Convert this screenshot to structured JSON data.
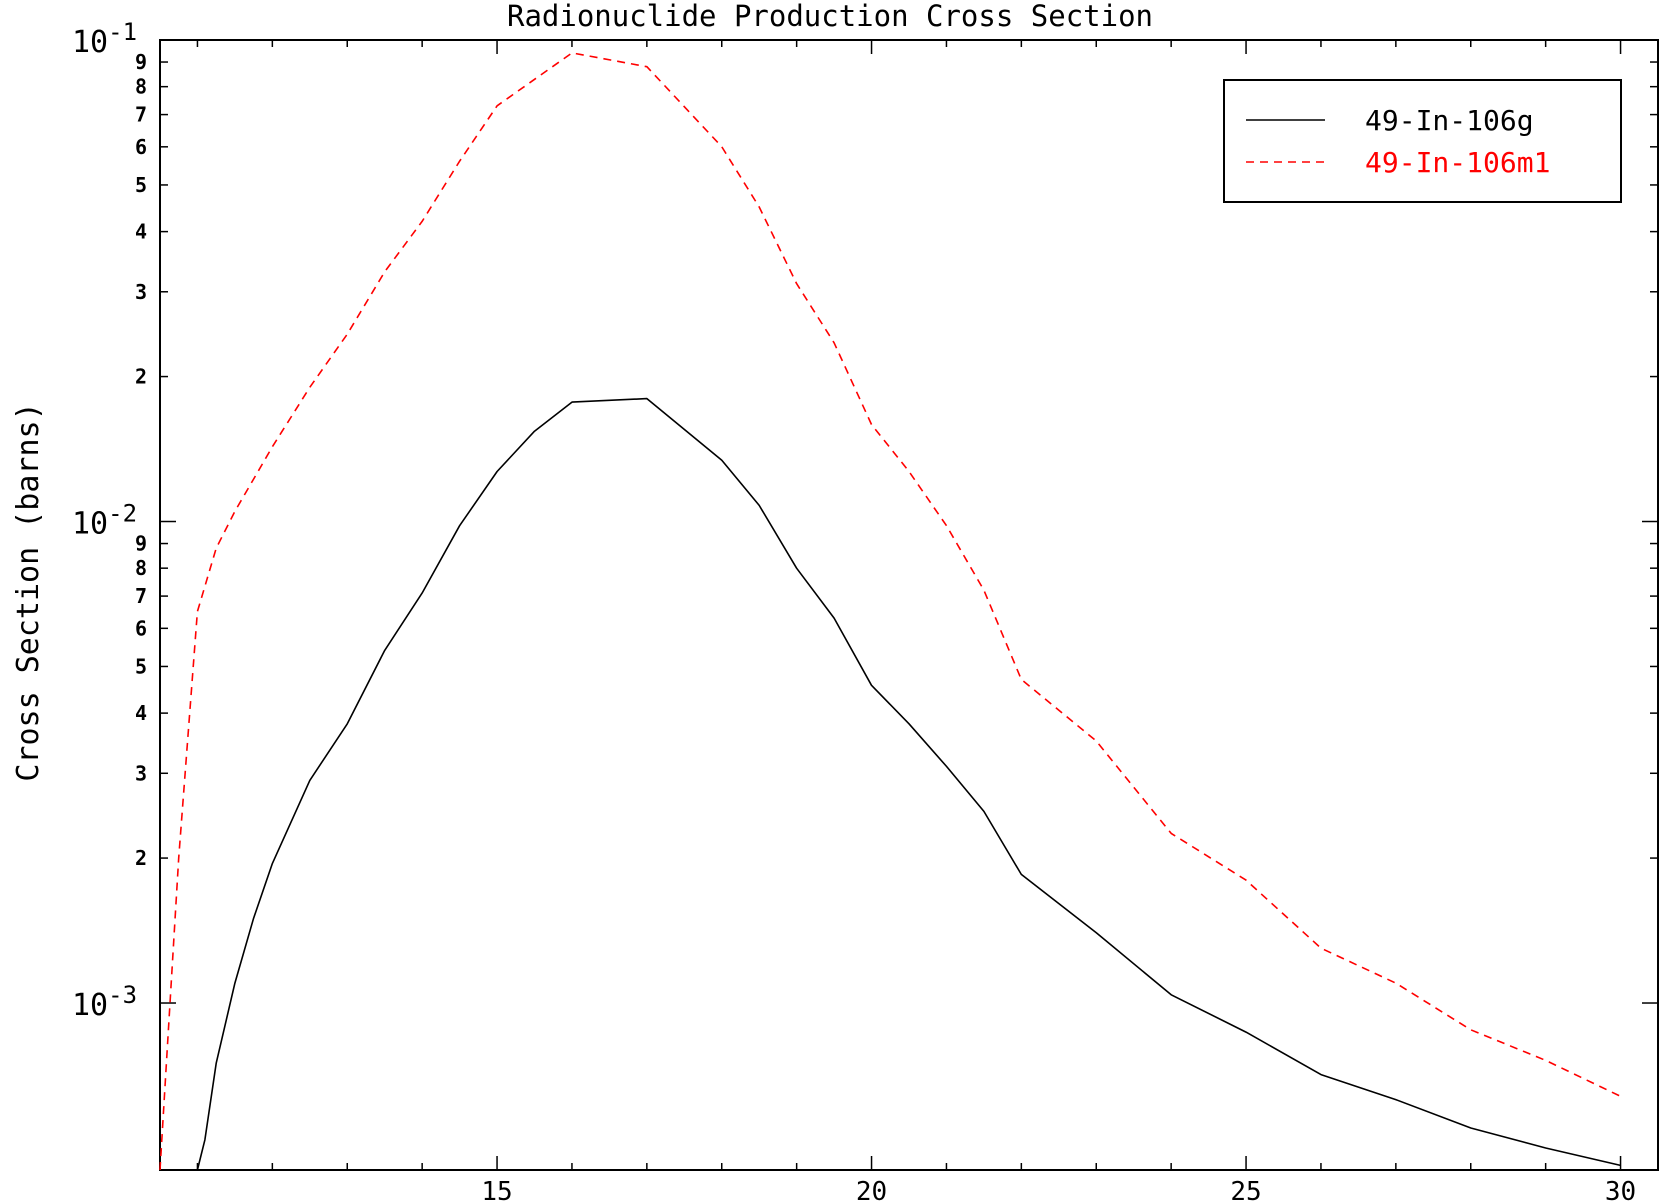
{
  "chart_data": {
    "type": "line",
    "title": "Radionuclide Production Cross Section",
    "xlabel": "",
    "ylabel": "Cross Section (barns)",
    "xlim": [
      10.5,
      30.5
    ],
    "ylim": [
      0.00045,
      0.1
    ],
    "yscale": "log",
    "grid": false,
    "legend_position": "top-right",
    "x_ticks": [
      15,
      20,
      25,
      30
    ],
    "y_decades": [
      {
        "value": 0.1,
        "base": "10",
        "exp": "-1"
      },
      {
        "value": 0.01,
        "base": "10",
        "exp": "-2"
      },
      {
        "value": 0.001,
        "base": "10",
        "exp": "-3"
      }
    ],
    "y_minor_labels": [
      "9",
      "8",
      "7",
      "6",
      "5",
      "4",
      "3",
      "2"
    ],
    "series": [
      {
        "name": "49-In-106g",
        "color": "#000000",
        "style": "solid",
        "x": [
          11.0,
          11.1,
          11.25,
          11.5,
          11.75,
          12.0,
          12.5,
          13.0,
          13.5,
          14.0,
          14.5,
          15.0,
          15.5,
          16.0,
          17.0,
          18.0,
          18.5,
          19.0,
          19.5,
          20.0,
          20.5,
          21.0,
          21.5,
          22.0,
          23.0,
          24.0,
          25.0,
          26.0,
          27.0,
          28.0,
          29.0,
          30.0
        ],
        "y": [
          0.00045,
          0.00052,
          0.00075,
          0.0011,
          0.0015,
          0.00195,
          0.0029,
          0.0038,
          0.0054,
          0.0071,
          0.0098,
          0.0127,
          0.0154,
          0.0177,
          0.018,
          0.0134,
          0.0108,
          0.008,
          0.0063,
          0.00457,
          0.0038,
          0.0031,
          0.0025,
          0.00185,
          0.0014,
          0.00104,
          0.00087,
          0.00071,
          0.00063,
          0.00055,
          0.0005,
          0.00046
        ]
      },
      {
        "name": "49-In-106m1",
        "color": "#ff0000",
        "style": "dashed",
        "x": [
          10.5,
          10.75,
          11.0,
          11.25,
          11.5,
          12.0,
          12.5,
          13.0,
          13.5,
          14.0,
          14.5,
          15.0,
          16.0,
          17.0,
          18.0,
          18.5,
          19.0,
          19.5,
          20.0,
          20.5,
          21.0,
          21.5,
          22.0,
          23.0,
          24.0,
          25.0,
          26.0,
          27.0,
          28.0,
          29.0,
          30.0
        ],
        "y": [
          0.00045,
          0.002,
          0.0065,
          0.0088,
          0.0105,
          0.0143,
          0.019,
          0.0245,
          0.033,
          0.042,
          0.056,
          0.073,
          0.094,
          0.088,
          0.06,
          0.045,
          0.0312,
          0.0235,
          0.0159,
          0.0127,
          0.0098,
          0.0072,
          0.0047,
          0.0035,
          0.00225,
          0.0018,
          0.0013,
          0.0011,
          0.00088,
          0.00076,
          0.00064
        ]
      }
    ]
  }
}
